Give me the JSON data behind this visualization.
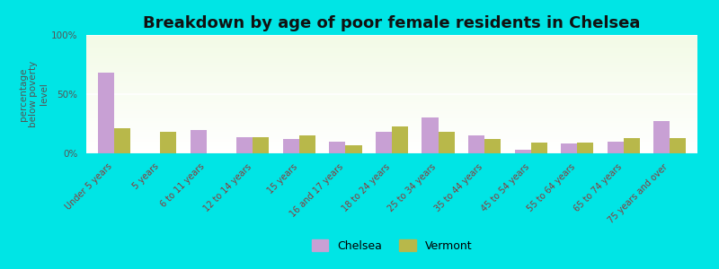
{
  "title": "Breakdown by age of poor female residents in Chelsea",
  "ylabel": "percentage\nbelow poverty\nlevel",
  "categories": [
    "Under 5 years",
    "5 years",
    "6 to 11 years",
    "12 to 14 years",
    "15 years",
    "16 and 17 years",
    "18 to 24 years",
    "25 to 34 years",
    "35 to 44 years",
    "45 to 54 years",
    "55 to 64 years",
    "65 to 74 years",
    "75 years and over"
  ],
  "chelsea_values": [
    68,
    0,
    20,
    14,
    12,
    10,
    18,
    30,
    15,
    3,
    8,
    10,
    27
  ],
  "vermont_values": [
    21,
    18,
    0,
    14,
    15,
    7,
    23,
    18,
    12,
    9,
    9,
    13,
    13
  ],
  "chelsea_color": "#c8a0d4",
  "vermont_color": "#b8b84a",
  "bg_color": "#00e5e5",
  "ylim": [
    0,
    100
  ],
  "yticks": [
    0,
    50,
    100
  ],
  "ytick_labels": [
    "0%",
    "50%",
    "100%"
  ],
  "bar_width": 0.35,
  "legend_chelsea": "Chelsea",
  "legend_vermont": "Vermont",
  "title_fontsize": 13,
  "title_fontweight": "bold",
  "axis_label_fontsize": 7.5,
  "tick_label_fontsize": 7,
  "xtick_color": "#8b3a3a",
  "ytick_color": "#555555",
  "ylabel_color": "#555555"
}
